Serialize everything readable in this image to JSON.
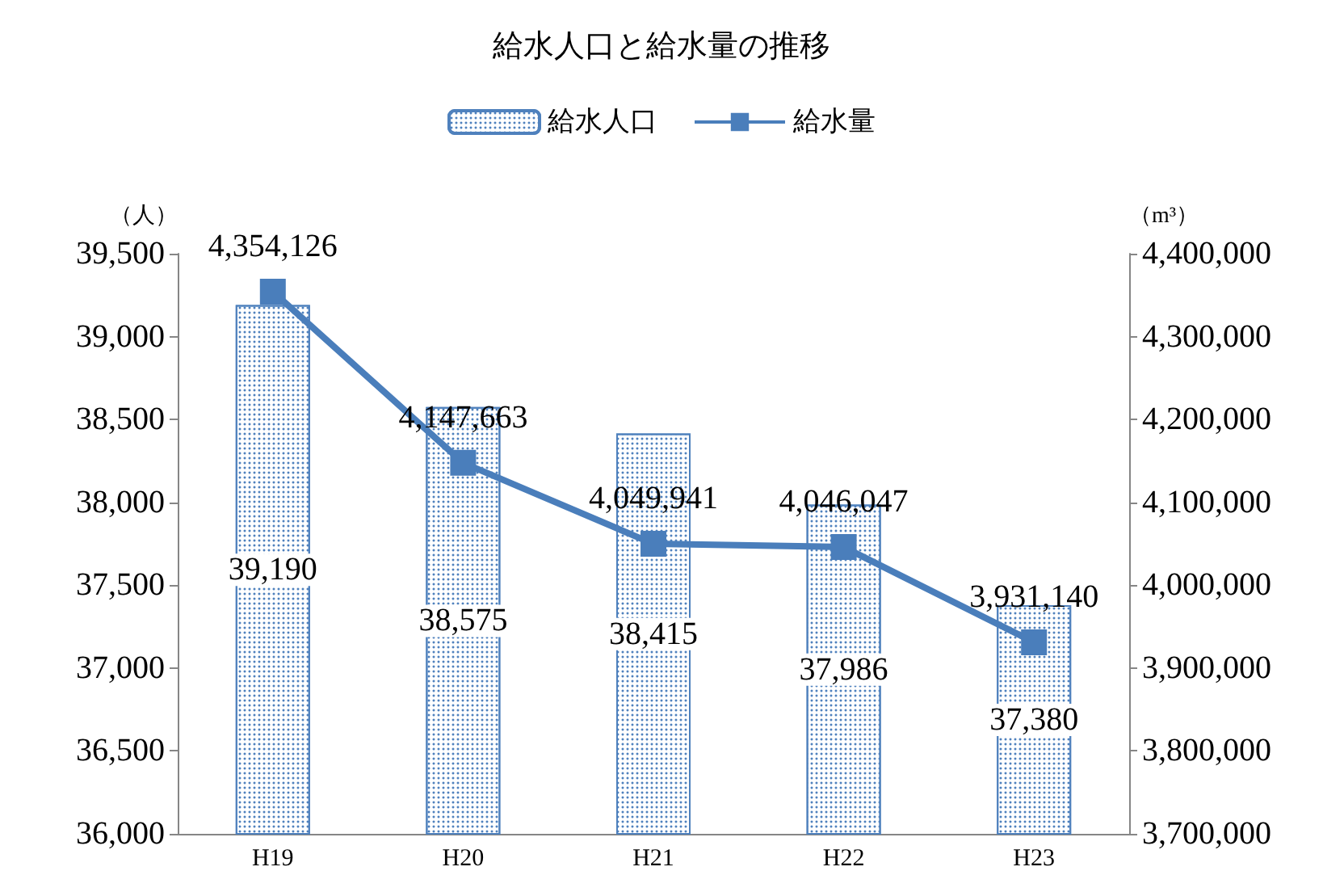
{
  "chart_data": {
    "type": "bar",
    "title": "給水人口と給水量の推移",
    "ylabel": "（人）",
    "y2label": "（m³）",
    "categories": [
      "H19",
      "H20",
      "H21",
      "H22",
      "H23"
    ],
    "series": [
      {
        "name": "給水人口",
        "color": "#4f81bd",
        "values": [
          39190,
          38575,
          38415,
          37986,
          37380
        ],
        "value_labels": [
          "39,190",
          "38,575",
          "38,415",
          "37,986",
          "37,380"
        ]
      },
      {
        "name": "給水量",
        "type": "line",
        "axis": "y2",
        "color": "#4a7ebb",
        "marker": "square",
        "line_style": "solid",
        "values": [
          4354126,
          4147663,
          4049941,
          4046047,
          3931140
        ],
        "value_labels": [
          "4,354,126",
          "4,147,663",
          "4,049,941",
          "4,046,047",
          "3,931,140"
        ]
      }
    ],
    "ylim": [
      36000,
      39500
    ],
    "yticks": [
      {
        "value": 36000,
        "label": "36,000"
      },
      {
        "value": 36500,
        "label": "36,500"
      },
      {
        "value": 37000,
        "label": "37,000"
      },
      {
        "value": 37500,
        "label": "37,500"
      },
      {
        "value": 38000,
        "label": "38,000"
      },
      {
        "value": 38500,
        "label": "38,500"
      },
      {
        "value": 39000,
        "label": "39,000"
      },
      {
        "value": 39500,
        "label": "39,500"
      }
    ],
    "y2lim": [
      3700000,
      4400000
    ],
    "y2ticks": [
      {
        "value": 3700000,
        "label": "3,700,000"
      },
      {
        "value": 3800000,
        "label": "3,800,000"
      },
      {
        "value": 3900000,
        "label": "3,900,000"
      },
      {
        "value": 4000000,
        "label": "4,000,000"
      },
      {
        "value": 4100000,
        "label": "4,100,000"
      },
      {
        "value": 4200000,
        "label": "4,200,000"
      },
      {
        "value": 4300000,
        "label": "4,300,000"
      },
      {
        "value": 4400000,
        "label": "4,400,000"
      }
    ],
    "grid": false,
    "legend": "top"
  }
}
